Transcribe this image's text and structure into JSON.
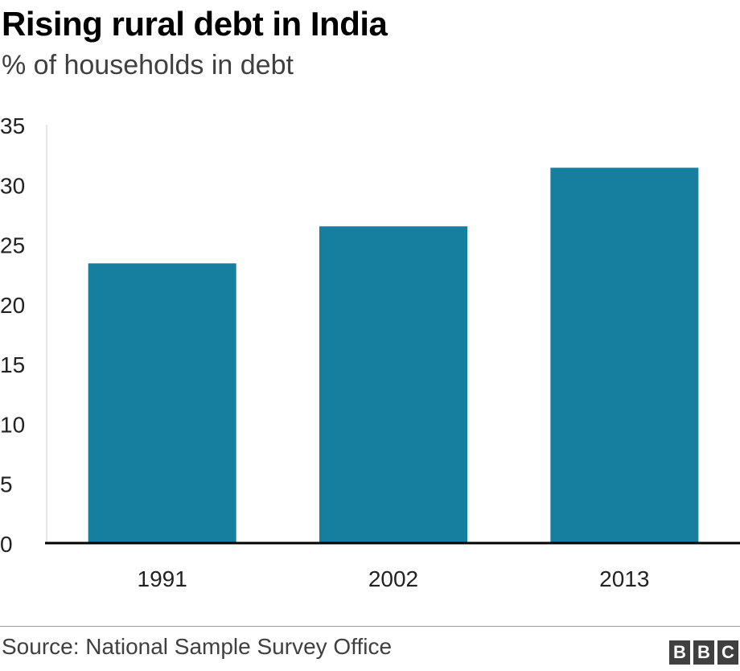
{
  "header": {
    "title": "Rising rural debt in India",
    "subtitle": "% of households in debt"
  },
  "footer": {
    "source": "Source: National Sample Survey Office",
    "logo": "BBC"
  },
  "colors": {
    "bar": "#167f9f",
    "axis": "#000000"
  },
  "chart_data": {
    "type": "bar",
    "title": "Rising rural debt in India",
    "subtitle": "% of households in debt",
    "categories": [
      "1991",
      "2002",
      "2013"
    ],
    "values": [
      23.4,
      26.5,
      31.4
    ],
    "ylim": [
      0,
      35
    ],
    "yticks": [
      0,
      5,
      10,
      15,
      20,
      25,
      30,
      35
    ],
    "grid": false,
    "legend": "none"
  }
}
